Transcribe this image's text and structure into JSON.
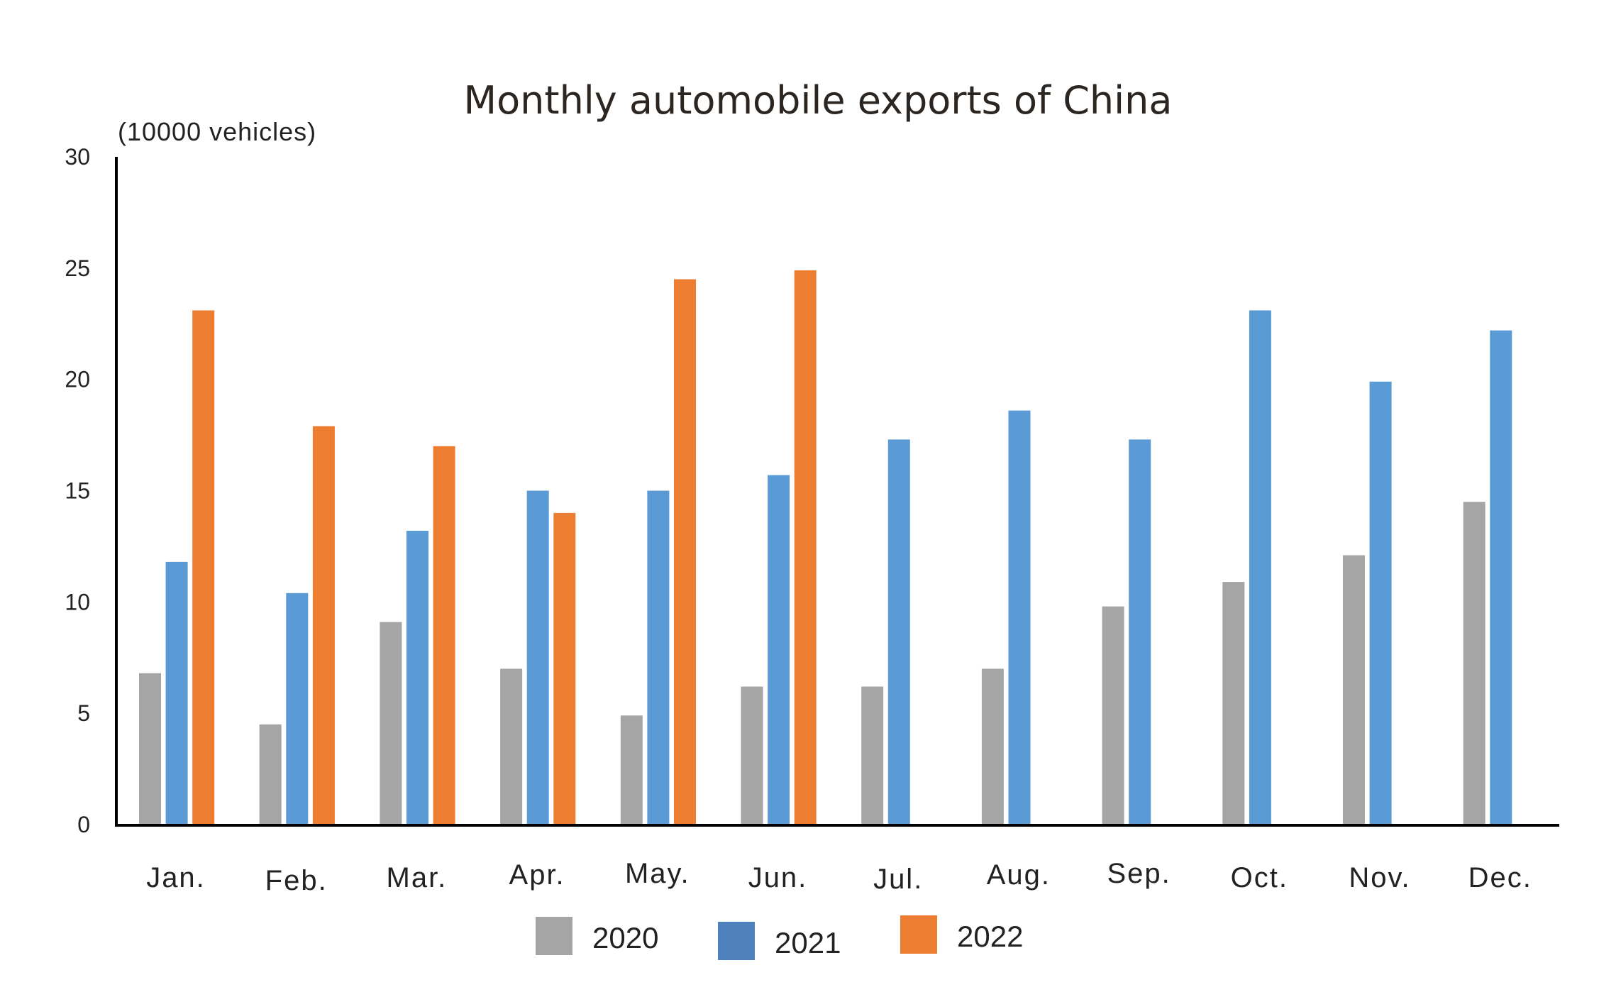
{
  "chart_data": {
    "type": "bar",
    "title": "Monthly automobile exports of China",
    "ylabel": "(10000 vehicles)",
    "xlabel": "",
    "ylim": [
      0,
      30
    ],
    "yticks": [
      0,
      5,
      10,
      15,
      20,
      25,
      30
    ],
    "grid": false,
    "legend_position": "bottom",
    "categories": [
      "Jan.",
      "Feb.",
      "Mar.",
      "Apr.",
      "May.",
      "Jun.",
      "Jul.",
      "Aug.",
      "Sep.",
      "Oct.",
      "Nov.",
      "Dec."
    ],
    "series": [
      {
        "name": "2020",
        "color": "#a5a5a5",
        "legend_color": "#a5a5a5",
        "values": [
          6.8,
          4.5,
          9.1,
          7.0,
          4.9,
          6.2,
          6.2,
          7.0,
          9.8,
          10.9,
          12.1,
          14.5
        ]
      },
      {
        "name": "2021",
        "color": "#5b9bd5",
        "legend_color": "#4f81bd",
        "values": [
          11.8,
          10.4,
          13.2,
          15.0,
          15.0,
          15.7,
          17.3,
          18.6,
          17.3,
          23.1,
          19.9,
          22.2
        ]
      },
      {
        "name": "2022",
        "color": "#ed7d31",
        "legend_color": "#ed7d31",
        "values": [
          23.1,
          17.9,
          17.0,
          14.0,
          24.5,
          24.9,
          null,
          null,
          null,
          null,
          null,
          null
        ]
      }
    ]
  }
}
